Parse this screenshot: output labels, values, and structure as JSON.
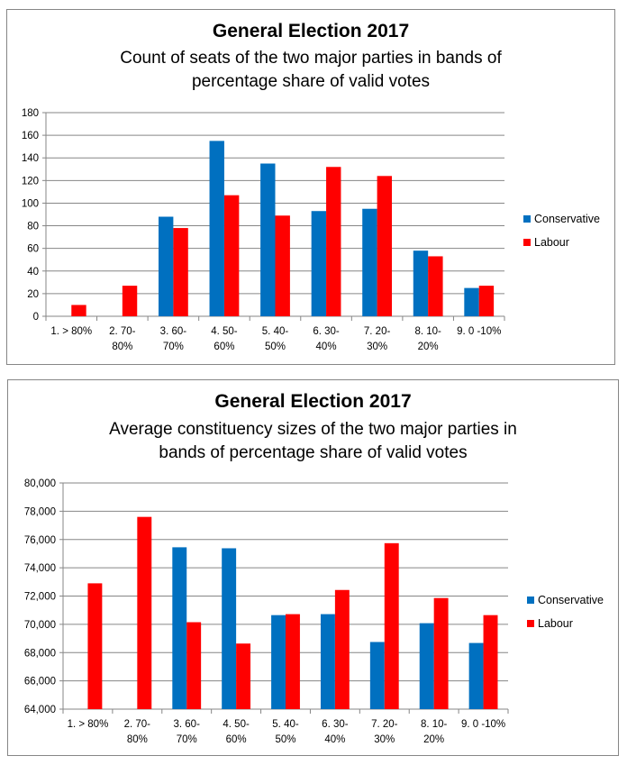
{
  "chart_data": [
    {
      "type": "bar",
      "title": "General Election 2017",
      "subtitle_lines": [
        "Count of seats of the two major parties in bands of",
        "percentage share of valid votes"
      ],
      "xlabel": "",
      "ylabel": "",
      "categories": [
        [
          "1. > 80%"
        ],
        [
          "2. 70-",
          "80%"
        ],
        [
          "3. 60-",
          "70%"
        ],
        [
          "4. 50-",
          "60%"
        ],
        [
          "5. 40-",
          "50%"
        ],
        [
          "6. 30-",
          "40%"
        ],
        [
          "7. 20-",
          "30%"
        ],
        [
          "8. 10-",
          "20%"
        ],
        [
          "9. 0 -10%"
        ]
      ],
      "series": [
        {
          "name": "Conservative",
          "color": "#0070C0",
          "values": [
            0,
            0,
            88,
            155,
            135,
            93,
            95,
            58,
            25
          ]
        },
        {
          "name": "Labour",
          "color": "#FF0000",
          "values": [
            10,
            27,
            78,
            107,
            89,
            132,
            124,
            53,
            27
          ]
        }
      ],
      "ylim": [
        0,
        180
      ],
      "yticks": [
        0,
        20,
        40,
        60,
        80,
        100,
        120,
        140,
        160,
        180
      ],
      "ytick_labels": [
        "0",
        "20",
        "40",
        "60",
        "80",
        "100",
        "120",
        "140",
        "160",
        "180"
      ],
      "grid": true,
      "legend_position": "right"
    },
    {
      "type": "bar",
      "title": "General Election 2017",
      "subtitle_lines": [
        "Average constituency sizes of the two major parties in",
        "bands of percentage share of valid votes"
      ],
      "xlabel": "",
      "ylabel": "",
      "categories": [
        [
          "1. > 80%"
        ],
        [
          "2. 70-",
          "80%"
        ],
        [
          "3. 60-",
          "70%"
        ],
        [
          "4. 50-",
          "60%"
        ],
        [
          "5. 40-",
          "50%"
        ],
        [
          "6. 30-",
          "40%"
        ],
        [
          "7. 20-",
          "30%"
        ],
        [
          "8. 10-",
          "20%"
        ],
        [
          "9. 0 -10%"
        ]
      ],
      "series": [
        {
          "name": "Conservative",
          "color": "#0070C0",
          "values": [
            null,
            null,
            75450,
            75380,
            70650,
            70720,
            68750,
            70080,
            68680
          ]
        },
        {
          "name": "Labour",
          "color": "#FF0000",
          "values": [
            72900,
            77600,
            70150,
            68640,
            70720,
            72430,
            75740,
            71860,
            70650
          ]
        }
      ],
      "ylim": [
        64000,
        80000
      ],
      "yticks": [
        64000,
        66000,
        68000,
        70000,
        72000,
        74000,
        76000,
        78000,
        80000
      ],
      "ytick_labels": [
        "64,000",
        "66,000",
        "68,000",
        "70,000",
        "72,000",
        "74,000",
        "76,000",
        "78,000",
        "80,000"
      ],
      "grid": true,
      "legend_position": "right"
    }
  ]
}
